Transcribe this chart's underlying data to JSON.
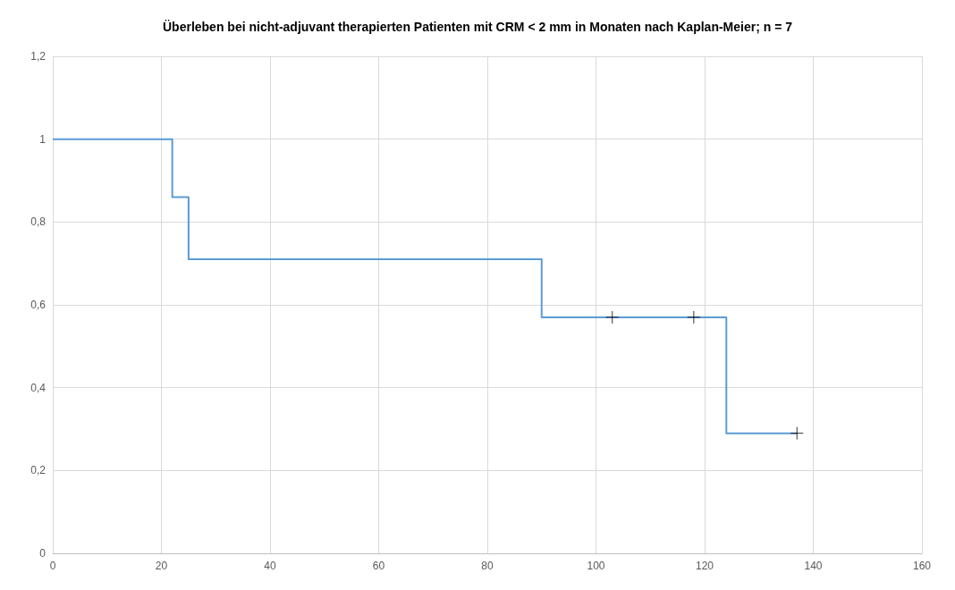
{
  "chart_data": {
    "type": "step",
    "title": "Überleben bei nicht-adjuvant therapierten Patienten mit CRM < 2 mm in Monaten nach Kaplan-Meier; n = 7",
    "series": [
      {
        "color": "#5b9bd5",
        "x": [
          0,
          22,
          25,
          90,
          124,
          137
        ],
        "values": [
          1,
          0.86,
          0.71,
          0.57,
          0.29,
          0.29
        ],
        "marker": "none",
        "line_style": "solid"
      },
      {
        "type": "scatter",
        "color": "#000000",
        "x": [
          103,
          118,
          137
        ],
        "values": [
          0.57,
          0.57,
          0.29
        ],
        "marker": "cross"
      }
    ],
    "xlim": [
      0,
      160
    ],
    "xticks": [
      0,
      20,
      40,
      60,
      80,
      100,
      120,
      140,
      160
    ],
    "ylim": [
      0,
      1.2
    ],
    "yticks": [
      0,
      {
        "value": 0.2,
        "label": "0,2"
      },
      {
        "value": 0.4,
        "label": "0,4"
      },
      {
        "value": 0.6,
        "label": "0,6"
      },
      {
        "value": 0.8,
        "label": "0,8"
      },
      1,
      {
        "value": 1.2,
        "label": "1,2"
      }
    ],
    "grid": true
  }
}
